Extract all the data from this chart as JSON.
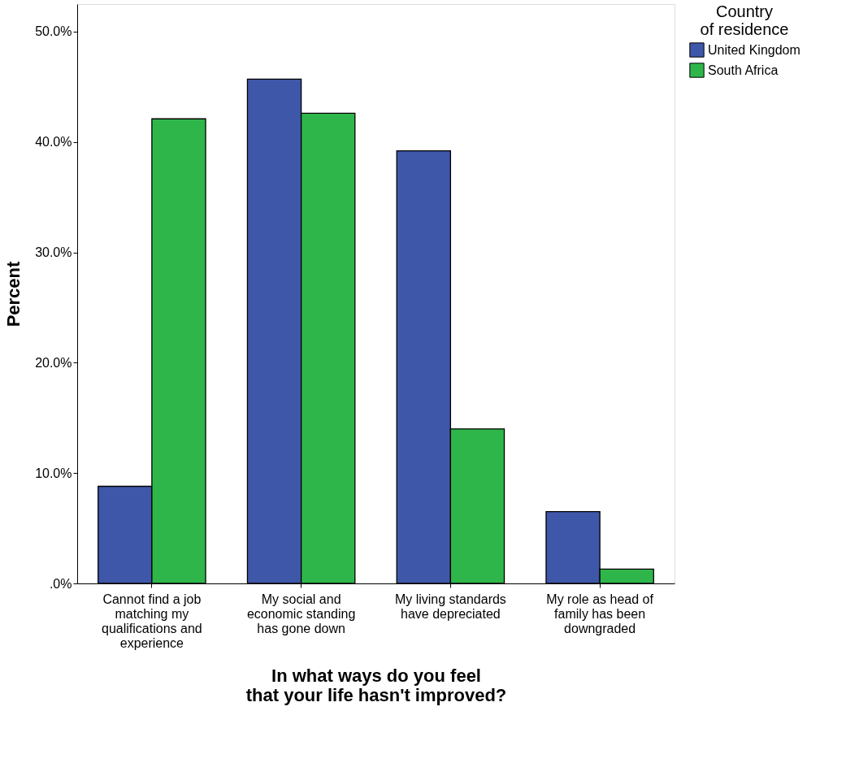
{
  "chart_data": {
    "type": "bar",
    "xlabel": "In what ways do you feel that your life hasn't improved?",
    "ylabel": "Percent",
    "legend_title": "Country of residence",
    "categories": [
      "Cannot find a job\nmatching my\nqualifications and\nexperience",
      "My social and\neconomic standing\nhas gone down",
      "My living standards\nhave depreciated",
      "My role as head of\nfamily has been\ndowngraded"
    ],
    "series": [
      {
        "name": "United Kingdom",
        "color": "#3f57a9",
        "values": [
          8.8,
          45.7,
          39.2,
          6.5
        ]
      },
      {
        "name": "South Africa",
        "color": "#2fb64a",
        "values": [
          42.1,
          42.6,
          14.0,
          1.3
        ]
      }
    ],
    "ylim": [
      0,
      52.5
    ],
    "yticks": [
      {
        "value": 0,
        "label": ".0%"
      },
      {
        "value": 10,
        "label": "10.0%"
      },
      {
        "value": 20,
        "label": "20.0%"
      },
      {
        "value": 30,
        "label": "30.0%"
      },
      {
        "value": 40,
        "label": "40.0%"
      },
      {
        "value": 50,
        "label": "50.0%"
      }
    ],
    "grid": false,
    "legend": "top right"
  }
}
